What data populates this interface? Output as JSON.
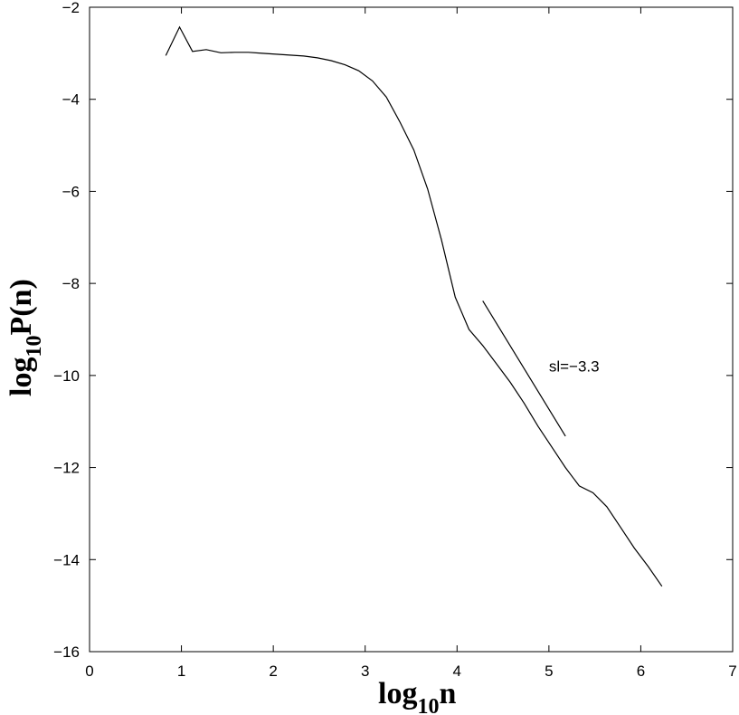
{
  "chart_data": {
    "type": "line",
    "xlabel": {
      "main": "log",
      "sub": "10",
      "tail": "n"
    },
    "ylabel": {
      "main": "log",
      "sub": "10",
      "tail": "P(n)"
    },
    "xlim": [
      0,
      7
    ],
    "ylim": [
      -16,
      -2
    ],
    "xticks": [
      0,
      1,
      2,
      3,
      4,
      5,
      6,
      7
    ],
    "yticks": [
      -2,
      -4,
      -6,
      -8,
      -10,
      -12,
      -14,
      -16
    ],
    "grid": false,
    "series": [
      {
        "x": [
          0.83,
          0.98,
          1.12,
          1.27,
          1.43,
          1.58,
          1.73,
          1.88,
          2.03,
          2.18,
          2.33,
          2.48,
          2.63,
          2.78,
          2.93,
          3.08,
          3.23,
          3.38,
          3.53,
          3.68,
          3.83,
          3.98,
          4.13,
          4.28,
          4.43,
          4.58,
          4.73,
          4.88,
          5.03,
          5.18,
          5.33,
          5.48,
          5.63,
          5.78,
          5.93,
          6.08,
          6.23
        ],
        "y": [
          -3.05,
          -2.43,
          -2.96,
          -2.92,
          -2.99,
          -2.98,
          -2.98,
          -3.0,
          -3.02,
          -3.04,
          -3.06,
          -3.1,
          -3.16,
          -3.25,
          -3.38,
          -3.6,
          -3.95,
          -4.5,
          -5.1,
          -5.95,
          -7.05,
          -8.3,
          -9.0,
          -9.35,
          -9.75,
          -10.15,
          -10.6,
          -11.1,
          -11.55,
          -12.0,
          -12.4,
          -12.55,
          -12.85,
          -13.3,
          -13.75,
          -14.15,
          -14.58
        ]
      }
    ],
    "fit_line": {
      "x": [
        4.28,
        5.18
      ],
      "y": [
        -8.38,
        -11.32
      ]
    },
    "annotation": {
      "text": "sl=−3.3",
      "x": 5.0,
      "y": -9.8
    }
  }
}
